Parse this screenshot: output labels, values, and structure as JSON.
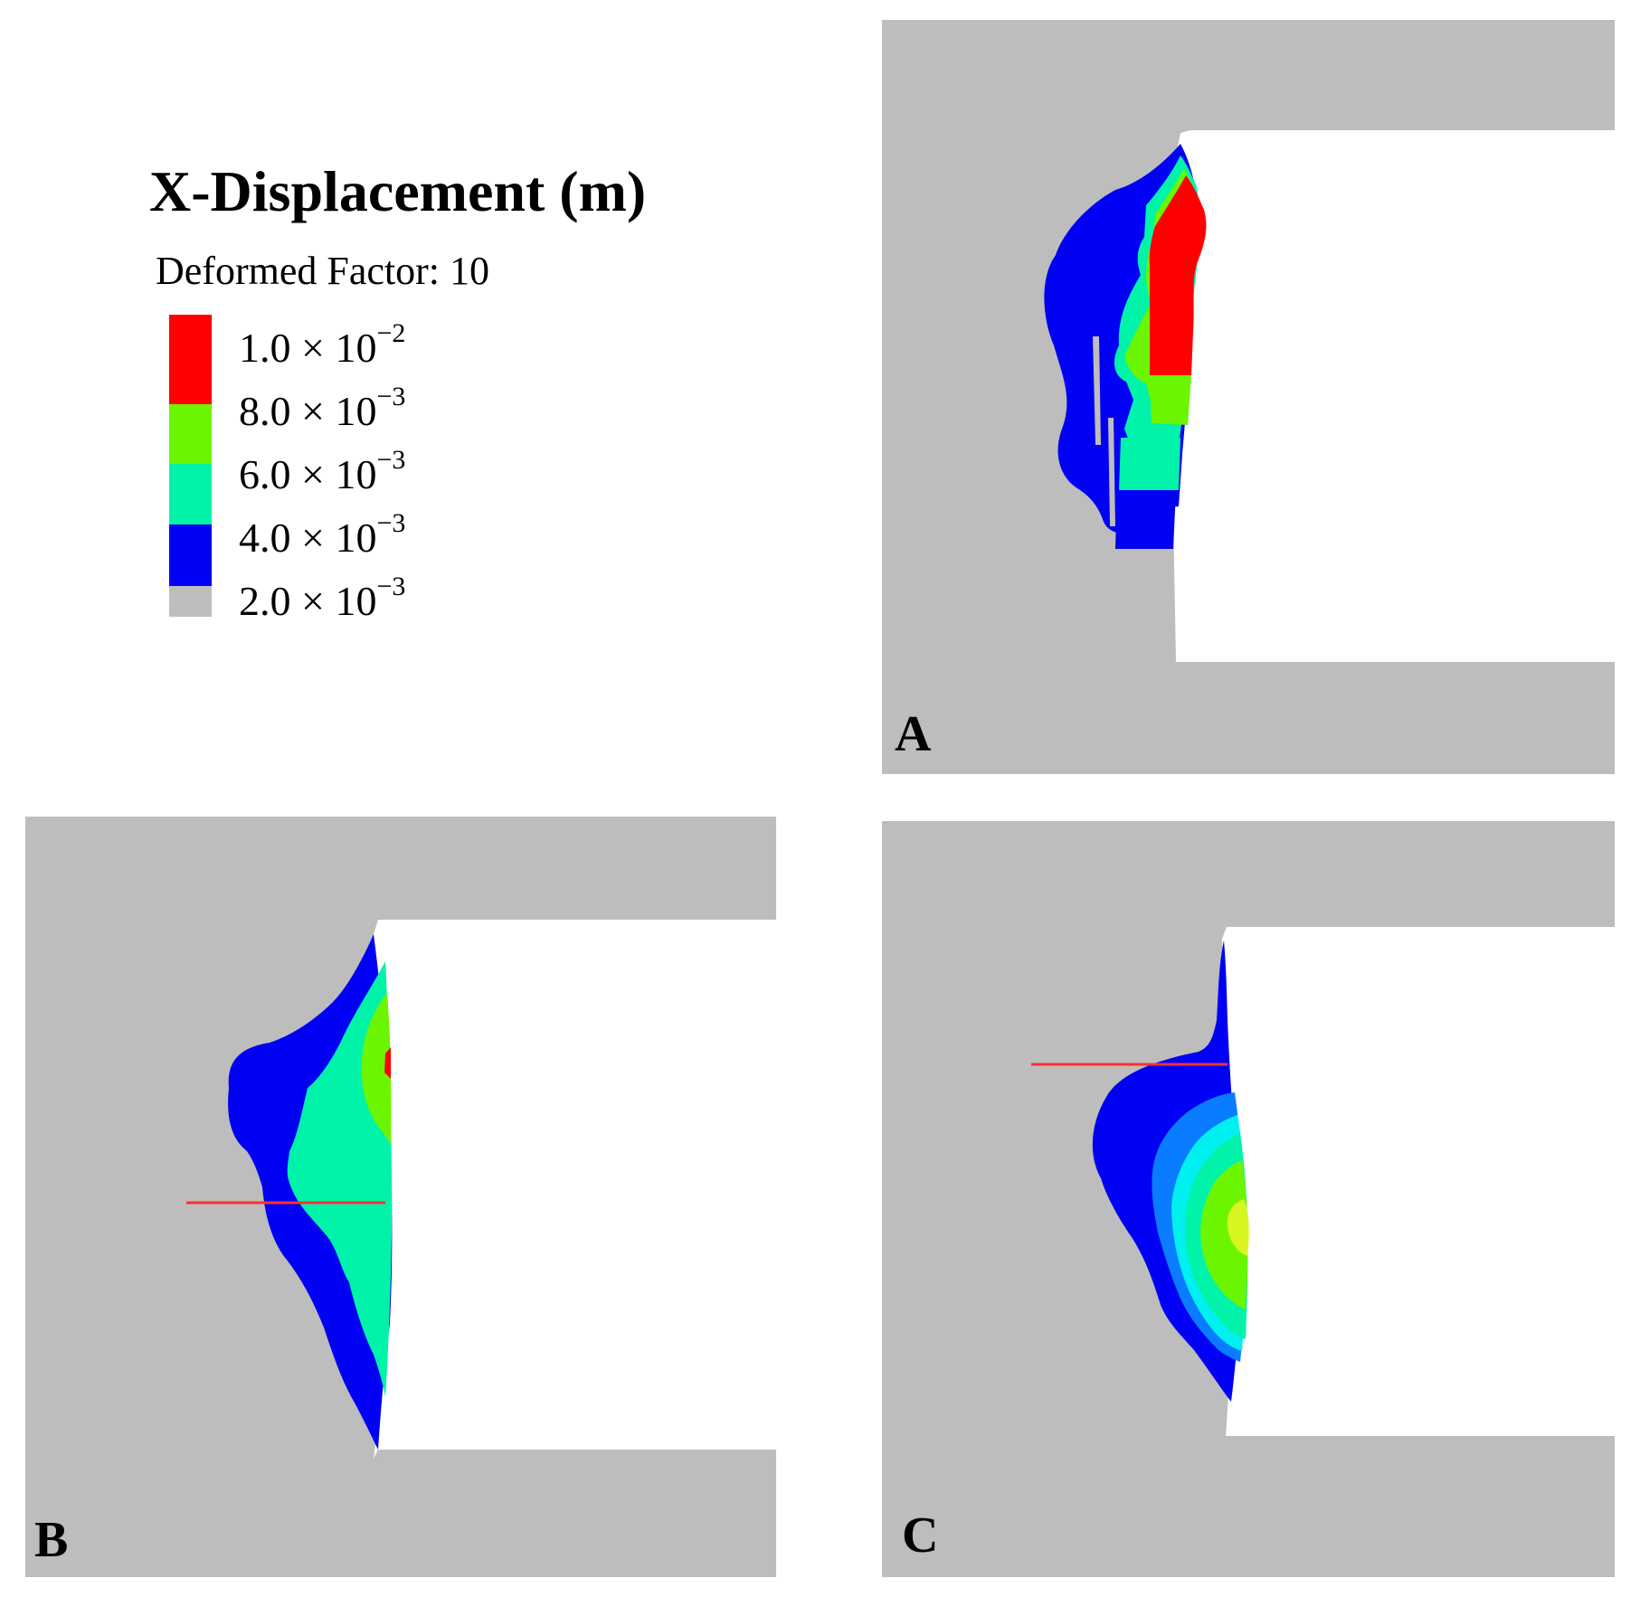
{
  "legend": {
    "title": "X-Displacement (m)",
    "subtitle": "Deformed Factor: 10",
    "items": [
      {
        "color": "#ff0000",
        "mantissa": "1.0 × 10",
        "exp": "−2"
      },
      {
        "color": "#6cf500",
        "mantissa": "8.0 × 10",
        "exp": "−3"
      },
      {
        "color": "#00f3a8",
        "mantissa": "6.0 × 10",
        "exp": "−3"
      },
      {
        "color": "#0000f5",
        "mantissa": "4.0 × 10",
        "exp": "−3"
      },
      {
        "color": "#bebebe",
        "mantissa": "2.0 × 10",
        "exp": "−3"
      }
    ]
  },
  "panels": {
    "a": {
      "label": "A"
    },
    "b": {
      "label": "B"
    },
    "c": {
      "label": "C"
    }
  },
  "colors": {
    "rock": "#bdbdbd",
    "red": "#ff0000",
    "green": "#6cf500",
    "cyan": "#00f3a8",
    "blue": "#0000f5",
    "light_blue": "#0a7cff",
    "aqua": "#00f0f0",
    "yellow": "#d8f520",
    "survey_line": "#ff3030"
  }
}
